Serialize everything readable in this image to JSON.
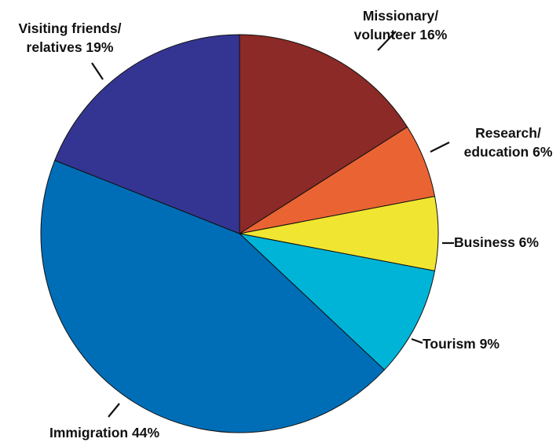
{
  "chart_data": {
    "type": "pie",
    "title": "",
    "slices": [
      {
        "name": "Missionary/ volunteer",
        "value": 16,
        "color": "#8b2a26",
        "label": [
          "Missionary/",
          "volunteer 16%"
        ]
      },
      {
        "name": "Research/ education",
        "value": 6,
        "color": "#ea6433",
        "label": [
          "Research/",
          "education 6%"
        ]
      },
      {
        "name": "Business",
        "value": 6,
        "color": "#f0e531",
        "label": [
          "Business 6%"
        ]
      },
      {
        "name": "Tourism",
        "value": 9,
        "color": "#00b4d8",
        "label": [
          "Tourism 9%"
        ]
      },
      {
        "name": "Immigration",
        "value": 44,
        "color": "#006eb6",
        "label": [
          "Immigration 44%"
        ]
      },
      {
        "name": "Visiting friends/ relatives",
        "value": 19,
        "color": "#343592",
        "label": [
          "Visiting friends/",
          "relatives 19%"
        ]
      }
    ],
    "start": "12 o'clock",
    "direction": "clockwise",
    "labels": "outside with leader lines"
  }
}
